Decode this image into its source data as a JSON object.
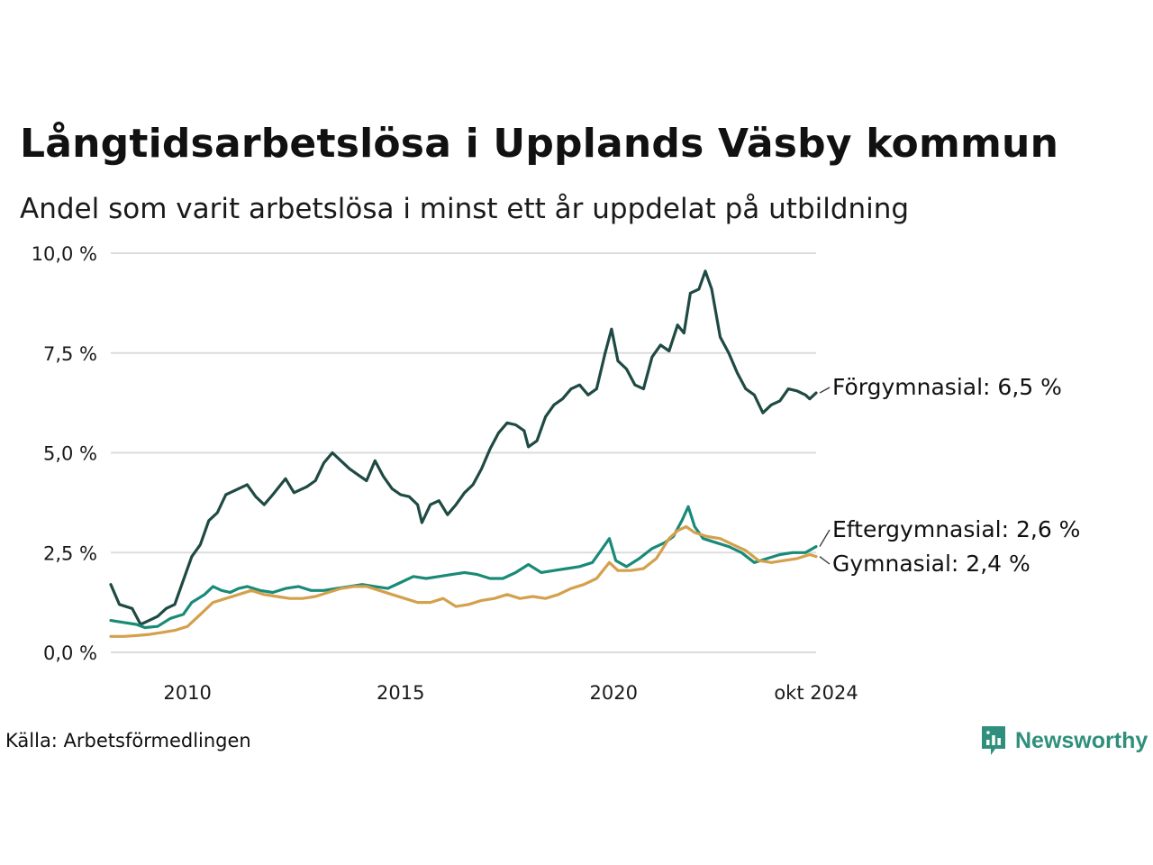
{
  "title": "Långtidsarbetslösa i Upplands Väsby kommun",
  "subtitle": "Andel som varit arbetslösa i minst ett år uppdelat på utbildning",
  "source": "Källa: Arbetsförmedlingen",
  "brand": {
    "name": "Newsworthy",
    "icon": "newsworthy-logo-icon",
    "color": "#2f8f7c"
  },
  "chart_data": {
    "type": "line",
    "x_unit": "year (decimal, monthly data)",
    "x_range": [
      2008.2,
      2024.75
    ],
    "ylim": [
      0,
      10
    ],
    "y_ticks": [
      {
        "value": 0,
        "label": "0,0 %"
      },
      {
        "value": 2.5,
        "label": "2,5 %"
      },
      {
        "value": 5,
        "label": "5,0 %"
      },
      {
        "value": 7.5,
        "label": "7,5 %"
      },
      {
        "value": 10,
        "label": "10,0 %"
      }
    ],
    "x_ticks": [
      {
        "value": 2010,
        "label": "2010"
      },
      {
        "value": 2015,
        "label": "2015"
      },
      {
        "value": 2020,
        "label": "2020"
      },
      {
        "value": 2024.75,
        "label": "okt 2024"
      }
    ],
    "grid": "horizontal",
    "series": [
      {
        "name": "Förgymnasial",
        "label": "Förgymnasial: 6,5 %",
        "color": "#1f4a44",
        "points": [
          [
            2008.2,
            1.7
          ],
          [
            2008.4,
            1.2
          ],
          [
            2008.7,
            1.1
          ],
          [
            2008.9,
            0.7
          ],
          [
            2009.1,
            0.8
          ],
          [
            2009.3,
            0.9
          ],
          [
            2009.5,
            1.1
          ],
          [
            2009.7,
            1.2
          ],
          [
            2009.9,
            1.8
          ],
          [
            2010.1,
            2.4
          ],
          [
            2010.3,
            2.7
          ],
          [
            2010.5,
            3.3
          ],
          [
            2010.7,
            3.5
          ],
          [
            2010.9,
            3.95
          ],
          [
            2011.1,
            4.05
          ],
          [
            2011.4,
            4.2
          ],
          [
            2011.6,
            3.9
          ],
          [
            2011.8,
            3.7
          ],
          [
            2012.0,
            3.95
          ],
          [
            2012.3,
            4.35
          ],
          [
            2012.5,
            4.0
          ],
          [
            2012.8,
            4.15
          ],
          [
            2013.0,
            4.3
          ],
          [
            2013.2,
            4.75
          ],
          [
            2013.4,
            5.0
          ],
          [
            2013.6,
            4.8
          ],
          [
            2013.8,
            4.6
          ],
          [
            2014.0,
            4.45
          ],
          [
            2014.2,
            4.3
          ],
          [
            2014.4,
            4.8
          ],
          [
            2014.6,
            4.4
          ],
          [
            2014.8,
            4.1
          ],
          [
            2015.0,
            3.95
          ],
          [
            2015.2,
            3.9
          ],
          [
            2015.4,
            3.7
          ],
          [
            2015.5,
            3.25
          ],
          [
            2015.7,
            3.7
          ],
          [
            2015.9,
            3.8
          ],
          [
            2016.1,
            3.45
          ],
          [
            2016.3,
            3.7
          ],
          [
            2016.5,
            4.0
          ],
          [
            2016.7,
            4.2
          ],
          [
            2016.9,
            4.6
          ],
          [
            2017.1,
            5.1
          ],
          [
            2017.3,
            5.5
          ],
          [
            2017.5,
            5.75
          ],
          [
            2017.7,
            5.7
          ],
          [
            2017.9,
            5.55
          ],
          [
            2018.0,
            5.15
          ],
          [
            2018.2,
            5.3
          ],
          [
            2018.4,
            5.9
          ],
          [
            2018.6,
            6.2
          ],
          [
            2018.8,
            6.35
          ],
          [
            2019.0,
            6.6
          ],
          [
            2019.2,
            6.7
          ],
          [
            2019.4,
            6.45
          ],
          [
            2019.6,
            6.6
          ],
          [
            2019.8,
            7.5
          ],
          [
            2019.95,
            8.1
          ],
          [
            2020.1,
            7.3
          ],
          [
            2020.3,
            7.1
          ],
          [
            2020.5,
            6.7
          ],
          [
            2020.7,
            6.6
          ],
          [
            2020.9,
            7.4
          ],
          [
            2021.1,
            7.7
          ],
          [
            2021.3,
            7.55
          ],
          [
            2021.5,
            8.2
          ],
          [
            2021.65,
            8.0
          ],
          [
            2021.8,
            9.0
          ],
          [
            2022.0,
            9.1
          ],
          [
            2022.15,
            9.55
          ],
          [
            2022.3,
            9.1
          ],
          [
            2022.5,
            7.9
          ],
          [
            2022.7,
            7.5
          ],
          [
            2022.9,
            7.0
          ],
          [
            2023.1,
            6.6
          ],
          [
            2023.3,
            6.45
          ],
          [
            2023.5,
            6.0
          ],
          [
            2023.7,
            6.2
          ],
          [
            2023.9,
            6.3
          ],
          [
            2024.1,
            6.6
          ],
          [
            2024.3,
            6.55
          ],
          [
            2024.5,
            6.45
          ],
          [
            2024.6,
            6.35
          ],
          [
            2024.75,
            6.5
          ]
        ]
      },
      {
        "name": "Eftergymnasial",
        "label": "Eftergymnasial: 2,6 %",
        "color": "#1a8a78",
        "points": [
          [
            2008.2,
            0.8
          ],
          [
            2008.5,
            0.75
          ],
          [
            2008.8,
            0.7
          ],
          [
            2009.0,
            0.62
          ],
          [
            2009.3,
            0.65
          ],
          [
            2009.6,
            0.85
          ],
          [
            2009.9,
            0.95
          ],
          [
            2010.1,
            1.25
          ],
          [
            2010.4,
            1.45
          ],
          [
            2010.6,
            1.65
          ],
          [
            2010.8,
            1.55
          ],
          [
            2011.0,
            1.5
          ],
          [
            2011.2,
            1.6
          ],
          [
            2011.4,
            1.65
          ],
          [
            2011.7,
            1.55
          ],
          [
            2012.0,
            1.5
          ],
          [
            2012.3,
            1.6
          ],
          [
            2012.6,
            1.65
          ],
          [
            2012.9,
            1.55
          ],
          [
            2013.2,
            1.55
          ],
          [
            2013.5,
            1.6
          ],
          [
            2013.8,
            1.65
          ],
          [
            2014.1,
            1.7
          ],
          [
            2014.4,
            1.65
          ],
          [
            2014.7,
            1.6
          ],
          [
            2015.0,
            1.75
          ],
          [
            2015.3,
            1.9
          ],
          [
            2015.6,
            1.85
          ],
          [
            2015.9,
            1.9
          ],
          [
            2016.2,
            1.95
          ],
          [
            2016.5,
            2.0
          ],
          [
            2016.8,
            1.95
          ],
          [
            2017.1,
            1.85
          ],
          [
            2017.4,
            1.85
          ],
          [
            2017.7,
            2.0
          ],
          [
            2018.0,
            2.2
          ],
          [
            2018.3,
            2.0
          ],
          [
            2018.6,
            2.05
          ],
          [
            2018.9,
            2.1
          ],
          [
            2019.2,
            2.15
          ],
          [
            2019.5,
            2.25
          ],
          [
            2019.7,
            2.55
          ],
          [
            2019.9,
            2.85
          ],
          [
            2020.05,
            2.3
          ],
          [
            2020.3,
            2.15
          ],
          [
            2020.6,
            2.35
          ],
          [
            2020.9,
            2.6
          ],
          [
            2021.2,
            2.75
          ],
          [
            2021.4,
            2.9
          ],
          [
            2021.6,
            3.3
          ],
          [
            2021.75,
            3.65
          ],
          [
            2021.9,
            3.15
          ],
          [
            2022.1,
            2.85
          ],
          [
            2022.4,
            2.75
          ],
          [
            2022.7,
            2.65
          ],
          [
            2023.0,
            2.5
          ],
          [
            2023.3,
            2.25
          ],
          [
            2023.6,
            2.35
          ],
          [
            2023.9,
            2.45
          ],
          [
            2024.2,
            2.5
          ],
          [
            2024.5,
            2.5
          ],
          [
            2024.75,
            2.65
          ]
        ]
      },
      {
        "name": "Gymnasial",
        "label": "Gymnasial: 2,4 %",
        "color": "#d4a04c",
        "points": [
          [
            2008.2,
            0.4
          ],
          [
            2008.5,
            0.4
          ],
          [
            2008.8,
            0.42
          ],
          [
            2009.1,
            0.45
          ],
          [
            2009.4,
            0.5
          ],
          [
            2009.7,
            0.55
          ],
          [
            2010.0,
            0.65
          ],
          [
            2010.3,
            0.95
          ],
          [
            2010.6,
            1.25
          ],
          [
            2010.9,
            1.35
          ],
          [
            2011.2,
            1.45
          ],
          [
            2011.5,
            1.55
          ],
          [
            2011.8,
            1.45
          ],
          [
            2012.1,
            1.4
          ],
          [
            2012.4,
            1.35
          ],
          [
            2012.7,
            1.35
          ],
          [
            2013.0,
            1.4
          ],
          [
            2013.3,
            1.5
          ],
          [
            2013.6,
            1.6
          ],
          [
            2013.9,
            1.65
          ],
          [
            2014.2,
            1.65
          ],
          [
            2014.5,
            1.55
          ],
          [
            2014.8,
            1.45
          ],
          [
            2015.1,
            1.35
          ],
          [
            2015.4,
            1.25
          ],
          [
            2015.7,
            1.25
          ],
          [
            2016.0,
            1.35
          ],
          [
            2016.3,
            1.15
          ],
          [
            2016.6,
            1.2
          ],
          [
            2016.9,
            1.3
          ],
          [
            2017.2,
            1.35
          ],
          [
            2017.5,
            1.45
          ],
          [
            2017.8,
            1.35
          ],
          [
            2018.1,
            1.4
          ],
          [
            2018.4,
            1.35
          ],
          [
            2018.7,
            1.45
          ],
          [
            2019.0,
            1.6
          ],
          [
            2019.3,
            1.7
          ],
          [
            2019.6,
            1.85
          ],
          [
            2019.9,
            2.25
          ],
          [
            2020.1,
            2.05
          ],
          [
            2020.4,
            2.05
          ],
          [
            2020.7,
            2.1
          ],
          [
            2021.0,
            2.35
          ],
          [
            2021.3,
            2.85
          ],
          [
            2021.5,
            3.05
          ],
          [
            2021.7,
            3.15
          ],
          [
            2021.9,
            3.0
          ],
          [
            2022.2,
            2.9
          ],
          [
            2022.5,
            2.85
          ],
          [
            2022.8,
            2.7
          ],
          [
            2023.1,
            2.55
          ],
          [
            2023.4,
            2.3
          ],
          [
            2023.7,
            2.25
          ],
          [
            2024.0,
            2.3
          ],
          [
            2024.3,
            2.35
          ],
          [
            2024.6,
            2.45
          ],
          [
            2024.75,
            2.4
          ]
        ]
      }
    ]
  }
}
